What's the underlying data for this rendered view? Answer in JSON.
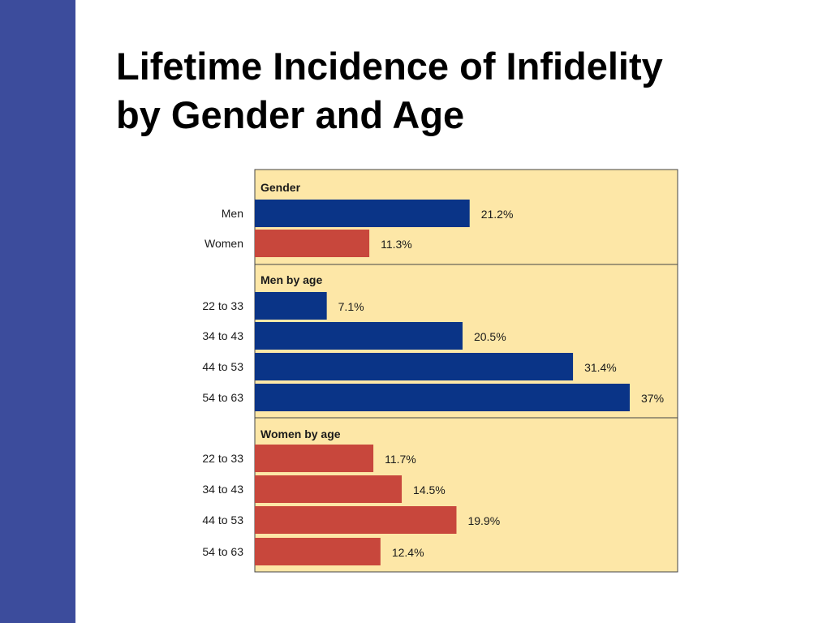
{
  "title": {
    "line1": "Lifetime Incidence of Infidelity",
    "line2": "by Gender and Age"
  },
  "colors": {
    "sidebar": "#3c4c9c",
    "panel": "#fde7a7",
    "border": "#444444",
    "men": "#0a3487",
    "women": "#c8473c"
  },
  "chart_data": {
    "type": "bar",
    "orientation": "horizontal",
    "unit": "%",
    "xlim": [
      0,
      37
    ],
    "sections": [
      {
        "title": "Gender",
        "bars": [
          {
            "label": "Men",
            "value": 21.2,
            "value_label": "21.2%",
            "color": "men"
          },
          {
            "label": "Women",
            "value": 11.3,
            "value_label": "11.3%",
            "color": "women"
          }
        ]
      },
      {
        "title": "Men by age",
        "bars": [
          {
            "label": "22 to 33",
            "value": 7.1,
            "value_label": "7.1%",
            "color": "men"
          },
          {
            "label": "34 to 43",
            "value": 20.5,
            "value_label": "20.5%",
            "color": "men"
          },
          {
            "label": "44 to 53",
            "value": 31.4,
            "value_label": "31.4%",
            "color": "men"
          },
          {
            "label": "54 to 63",
            "value": 37,
            "value_label": "37%",
            "color": "men"
          }
        ]
      },
      {
        "title": "Women by age",
        "bars": [
          {
            "label": "22 to 33",
            "value": 11.7,
            "value_label": "11.7%",
            "color": "women"
          },
          {
            "label": "34 to 43",
            "value": 14.5,
            "value_label": "14.5%",
            "color": "women"
          },
          {
            "label": "44 to 53",
            "value": 19.9,
            "value_label": "19.9%",
            "color": "women"
          },
          {
            "label": "54 to 63",
            "value": 12.4,
            "value_label": "12.4%",
            "color": "women"
          }
        ]
      }
    ]
  }
}
